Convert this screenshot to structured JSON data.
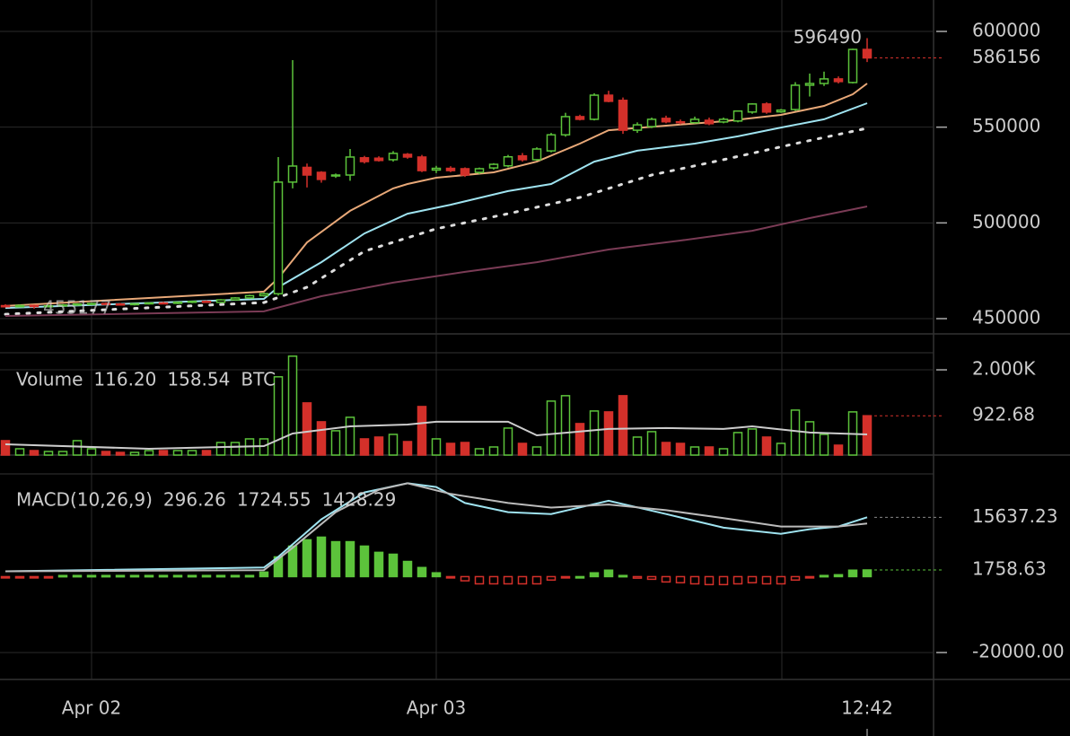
{
  "chart_data": [
    {
      "type": "candlestick",
      "open": [
        456800,
        456200,
        456900,
        456300,
        456700,
        457100,
        457600,
        457900,
        457600,
        457300,
        457800,
        458200,
        458000,
        458600,
        459000,
        458500,
        459800,
        460800,
        462000,
        463000,
        521300,
        529000,
        526400,
        524500,
        525000,
        534000,
        533800,
        533000,
        535800,
        534400,
        527600,
        528500,
        528300,
        526400,
        528700,
        529800,
        535000,
        533000,
        537600,
        546000,
        555500,
        554100,
        566700,
        564000,
        548400,
        550300,
        554600,
        552800,
        552300,
        553600,
        552700,
        553200,
        557900,
        562100,
        558000,
        559200,
        571900,
        572800,
        575200,
        573300,
        590600
      ],
      "high": [
        457500,
        457400,
        457300,
        457200,
        457600,
        458000,
        458300,
        458400,
        458200,
        458000,
        458600,
        458800,
        458900,
        459300,
        459500,
        460200,
        461200,
        462500,
        463500,
        534400,
        585000,
        531000,
        527000,
        525800,
        538600,
        535000,
        534800,
        537500,
        536500,
        535500,
        529800,
        529600,
        529000,
        528900,
        531200,
        535500,
        536500,
        539500,
        547000,
        557500,
        556500,
        567700,
        569000,
        565500,
        552500,
        555000,
        556000,
        554000,
        555500,
        555000,
        555000,
        558500,
        562500,
        563000,
        559500,
        573500,
        578000,
        579000,
        576500,
        591000,
        596490
      ],
      "low": [
        455800,
        455900,
        455177,
        456000,
        456300,
        456700,
        457100,
        457300,
        457100,
        456900,
        457400,
        457800,
        457600,
        458100,
        458200,
        458200,
        459400,
        460300,
        461500,
        462000,
        518000,
        518500,
        521000,
        523500,
        522000,
        531000,
        532000,
        532000,
        533500,
        526500,
        526000,
        526500,
        524000,
        525500,
        527800,
        529000,
        532000,
        532500,
        536800,
        545000,
        553500,
        553500,
        563000,
        546500,
        547000,
        549500,
        552000,
        551500,
        551800,
        551000,
        552000,
        552500,
        557000,
        557000,
        557500,
        558500,
        566000,
        571500,
        572800,
        572800,
        584000
      ],
      "close": [
        456200,
        456900,
        456300,
        456700,
        457100,
        457600,
        457900,
        457600,
        457300,
        457800,
        458200,
        458000,
        458600,
        459000,
        458500,
        459800,
        460800,
        462000,
        463000,
        521300,
        529700,
        525000,
        522700,
        525000,
        534400,
        532000,
        532600,
        536300,
        534400,
        527300,
        528500,
        527300,
        525000,
        528300,
        530600,
        534500,
        533000,
        538600,
        546000,
        555500,
        554100,
        566700,
        563500,
        548400,
        551200,
        554100,
        552800,
        552300,
        554100,
        551800,
        554100,
        558400,
        562100,
        557900,
        558900,
        571900,
        572800,
        575200,
        573800,
        590600,
        586156
      ],
      "up_color": "#5cc33b",
      "down_color": "#d3302a",
      "series": [
        {
          "color": "#e8a878",
          "style": "solid",
          "x": [
            0,
            18,
            19,
            21,
            24,
            27,
            28,
            30,
            34,
            37,
            40,
            42,
            46,
            50,
            54,
            57,
            59,
            60
          ],
          "values": [
            456600,
            464100,
            471100,
            489800,
            506300,
            518000,
            520300,
            523600,
            526400,
            532000,
            541400,
            548400,
            550800,
            553100,
            556400,
            561100,
            567200,
            572800
          ]
        },
        {
          "color": "#9fe3f0",
          "style": "solid",
          "x": [
            0,
            18,
            19,
            22,
            25,
            28,
            31,
            35,
            38,
            41,
            44,
            48,
            51,
            54,
            57,
            60
          ],
          "values": [
            455600,
            460300,
            466400,
            479500,
            494500,
            504800,
            509500,
            516600,
            520300,
            532000,
            537700,
            541400,
            545200,
            549800,
            554100,
            562500
          ]
        },
        {
          "color": "#dddddd",
          "style": "dotted",
          "x": [
            0,
            18,
            21,
            25,
            30,
            35,
            40,
            45,
            50,
            55,
            60
          ],
          "values": [
            452300,
            458400,
            466400,
            485200,
            496900,
            504800,
            513300,
            525000,
            533000,
            541400,
            549400
          ]
        },
        {
          "color": "#7a3b55",
          "style": "solid",
          "x": [
            0,
            18,
            22,
            27,
            32,
            37,
            42,
            47,
            52,
            56,
            60
          ],
          "values": [
            451400,
            453800,
            461700,
            468800,
            474400,
            479500,
            486100,
            490800,
            495900,
            502500,
            508600
          ]
        }
      ],
      "high_label": 596490,
      "low_label": 455177,
      "ylim": [
        442031,
        616406
      ],
      "yticks": [
        450000,
        500000,
        550000,
        600000
      ],
      "xlim": [
        -0.375,
        64.625
      ],
      "xticks": [
        {
          "value": 6,
          "label": "Apr 02"
        },
        {
          "value": 30,
          "label": "Apr 03"
        }
      ],
      "cursor": {
        "value": 60,
        "label": "12:42"
      },
      "grid": true
    },
    {
      "type": "bar",
      "legend": [
        {
          "text": "Volume",
          "color": "#bbbbbb"
        },
        {
          "text": "116.20",
          "color": "#d3302a"
        },
        {
          "text": "158.54",
          "color": "#bbbbbb"
        },
        {
          "text": "BTC",
          "color": "#dddddd"
        }
      ],
      "values": [
        338,
        148,
        105,
        84,
        84,
        338,
        148,
        84,
        63,
        63,
        105,
        105,
        105,
        105,
        105,
        295,
        295,
        380,
        380,
        1836,
        2321,
        1224,
        781,
        570,
        886,
        380,
        422,
        485,
        316,
        1139,
        380,
        274,
        295,
        148,
        190,
        633,
        274,
        190,
        1266,
        1393,
        739,
        1034,
        1013,
        1393,
        422,
        549,
        295,
        274,
        190,
        190,
        148,
        528,
        612,
        422,
        274,
        1055,
        781,
        485,
        232,
        1013,
        922.68
      ],
      "series": [
        {
          "color": "#cccccc",
          "x": [
            0,
            10,
            18,
            20,
            24,
            28,
            30,
            35,
            37,
            42,
            46,
            50,
            52,
            56,
            60
          ],
          "values": [
            253,
            148,
            211,
            506,
            675,
            717,
            781,
            781,
            464,
            612,
            633,
            612,
            675,
            528,
            485
          ]
        }
      ],
      "ylim": [
        0,
        2401
      ],
      "yticks": [
        {
          "value": 2000,
          "label": "2.000K"
        }
      ]
    },
    {
      "type": "histogram-macd",
      "legend": [
        {
          "text": "MACD(10,26,9)",
          "color": "#bbbbbb"
        },
        {
          "text": "296.26",
          "color": "#5cc33b"
        },
        {
          "text": "1724.55",
          "color": "#9fe3f0"
        },
        {
          "text": "1428.29",
          "color": "#bbbbbb"
        }
      ],
      "values": [
        -200,
        -200,
        -200,
        -200,
        300,
        300,
        300,
        300,
        300,
        300,
        300,
        300,
        300,
        300,
        300,
        300,
        300,
        300,
        1200,
        5200,
        8040,
        9700,
        10400,
        9200,
        9200,
        8040,
        6400,
        5900,
        4000,
        2400,
        1000,
        -100,
        -1100,
        -1900,
        -1900,
        -1900,
        -1900,
        -1900,
        -900,
        -200,
        0,
        1000,
        1700,
        300,
        -400,
        -700,
        -1400,
        -1600,
        -1900,
        -2100,
        -2100,
        -1900,
        -1600,
        -1900,
        -1900,
        -900,
        -200,
        300,
        500,
        1700,
        1758.63
      ],
      "series": [
        {
          "color": "#9fe3f0",
          "x": [
            0,
            18,
            19,
            22,
            25,
            28,
            30,
            32,
            35,
            38,
            42,
            46,
            50,
            54,
            56,
            58,
            60
          ],
          "values": [
            1400,
            2400,
            5200,
            15100,
            22200,
            24600,
            23600,
            19400,
            17000,
            16500,
            20000,
            16500,
            12900,
            11300,
            12500,
            13200,
            15637.23
          ]
        },
        {
          "color": "#bbbbbb",
          "x": [
            0,
            18,
            20,
            23,
            26,
            28,
            31,
            35,
            38,
            42,
            46,
            50,
            54,
            58,
            60
          ],
          "values": [
            1400,
            1700,
            7600,
            17000,
            22900,
            24600,
            21800,
            19400,
            18200,
            19000,
            17500,
            15400,
            13200,
            13200,
            14000
          ]
        }
      ],
      "ylim": [
        -27095,
        27064
      ],
      "yticks": [
        {
          "value": -20000,
          "label": "-20000.00"
        }
      ]
    }
  ]
}
